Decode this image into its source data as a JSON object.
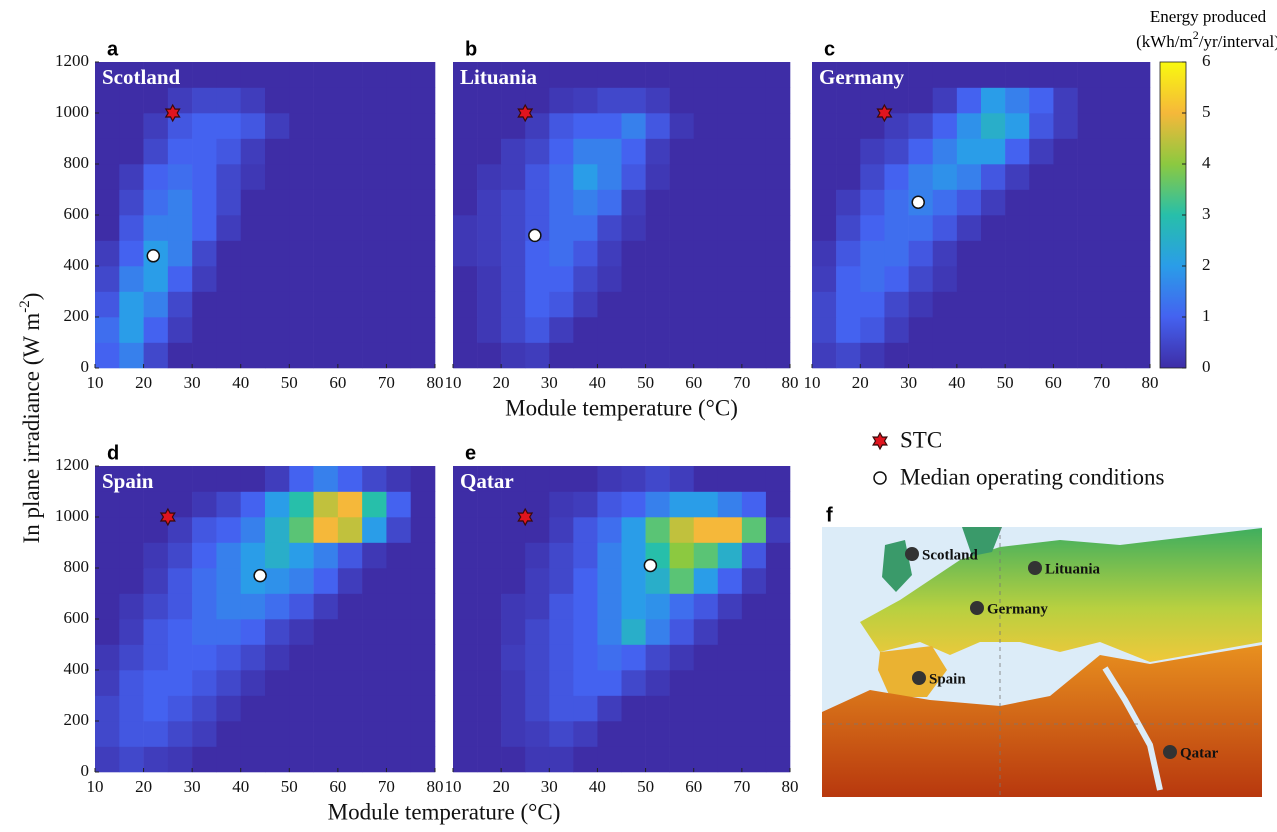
{
  "chart_data": [
    {
      "type": "heatmap",
      "panel": "a",
      "title": "Scotland",
      "ylabel": "In plane irradiance (W m",
      "ylabel_sup": "-2",
      "ylabel_end": ")",
      "xlim": [
        10,
        80
      ],
      "ylim": [
        0,
        1200
      ],
      "xticks": [
        10,
        20,
        30,
        40,
        50,
        60,
        70,
        80
      ],
      "yticks": [
        0,
        200,
        400,
        600,
        800,
        1000,
        1200
      ],
      "xbins": [
        10,
        15,
        20,
        25,
        30,
        35,
        40,
        45,
        50,
        55,
        60,
        65,
        70,
        75,
        80
      ],
      "ybins": [
        0,
        100,
        200,
        300,
        400,
        500,
        600,
        700,
        800,
        900,
        1000,
        1100,
        1200
      ],
      "z": [
        [
          1,
          1.5,
          0.5,
          0,
          0,
          0,
          0,
          0,
          0,
          0,
          0,
          0,
          0,
          0
        ],
        [
          1.2,
          2,
          1,
          0.3,
          0,
          0,
          0,
          0,
          0,
          0,
          0,
          0,
          0,
          0
        ],
        [
          0.8,
          2,
          1.5,
          0.5,
          0,
          0,
          0,
          0,
          0,
          0,
          0,
          0,
          0,
          0
        ],
        [
          0.5,
          1.5,
          2,
          1,
          0.3,
          0,
          0,
          0,
          0,
          0,
          0,
          0,
          0,
          0
        ],
        [
          0.3,
          1,
          2,
          1.5,
          0.5,
          0,
          0,
          0,
          0,
          0,
          0,
          0,
          0,
          0
        ],
        [
          0,
          0.8,
          1.5,
          1.5,
          1,
          0.3,
          0,
          0,
          0,
          0,
          0,
          0,
          0,
          0
        ],
        [
          0,
          0.5,
          1.2,
          1.5,
          1,
          0.5,
          0,
          0,
          0,
          0,
          0,
          0,
          0,
          0
        ],
        [
          0,
          0.3,
          1,
          1.2,
          1,
          0.5,
          0.2,
          0,
          0,
          0,
          0,
          0,
          0,
          0
        ],
        [
          0,
          0,
          0.5,
          1,
          1,
          0.8,
          0.3,
          0,
          0,
          0,
          0,
          0,
          0,
          0
        ],
        [
          0,
          0,
          0.3,
          0.8,
          1,
          1,
          0.8,
          0.3,
          0,
          0,
          0,
          0,
          0,
          0
        ],
        [
          0,
          0,
          0,
          0.3,
          0.5,
          0.5,
          0.3,
          0,
          0,
          0,
          0,
          0,
          0,
          0
        ],
        [
          0,
          0,
          0,
          0,
          0,
          0,
          0,
          0,
          0,
          0,
          0,
          0,
          0,
          0
        ]
      ],
      "stc": {
        "x": 26,
        "y": 1000
      },
      "median": {
        "x": 22,
        "y": 440
      }
    },
    {
      "type": "heatmap",
      "panel": "b",
      "title": "Lituania",
      "xlabel": "Module temperature (°C)",
      "xlim": [
        10,
        80
      ],
      "ylim": [
        0,
        1200
      ],
      "xticks": [
        10,
        20,
        30,
        40,
        50,
        60,
        70,
        80
      ],
      "xbins": [
        10,
        15,
        20,
        25,
        30,
        35,
        40,
        45,
        50,
        55,
        60,
        65,
        70,
        75,
        80
      ],
      "ybins": [
        0,
        100,
        200,
        300,
        400,
        500,
        600,
        700,
        800,
        900,
        1000,
        1100,
        1200
      ],
      "z": [
        [
          0,
          0,
          0.2,
          0.3,
          0,
          0,
          0,
          0,
          0,
          0,
          0,
          0,
          0,
          0
        ],
        [
          0,
          0.2,
          0.5,
          0.8,
          0.3,
          0,
          0,
          0,
          0,
          0,
          0,
          0,
          0,
          0
        ],
        [
          0,
          0.2,
          0.5,
          1,
          0.8,
          0.3,
          0,
          0,
          0,
          0,
          0,
          0,
          0,
          0
        ],
        [
          0,
          0.2,
          0.5,
          1,
          1,
          0.5,
          0.2,
          0,
          0,
          0,
          0,
          0,
          0,
          0
        ],
        [
          0.2,
          0.3,
          0.5,
          1,
          1.2,
          0.8,
          0.3,
          0,
          0,
          0,
          0,
          0,
          0,
          0
        ],
        [
          0.2,
          0.3,
          0.5,
          0.8,
          1.2,
          1.2,
          0.5,
          0.2,
          0,
          0,
          0,
          0,
          0,
          0
        ],
        [
          0,
          0.3,
          0.5,
          0.8,
          1.2,
          1.5,
          1.2,
          0.3,
          0,
          0,
          0,
          0,
          0,
          0
        ],
        [
          0,
          0.2,
          0.3,
          0.8,
          1.2,
          2,
          1.5,
          0.8,
          0.2,
          0,
          0,
          0,
          0,
          0
        ],
        [
          0,
          0,
          0.3,
          0.5,
          1,
          1.5,
          1.5,
          1,
          0.3,
          0,
          0,
          0,
          0,
          0
        ],
        [
          0,
          0,
          0,
          0.3,
          0.8,
          1,
          1,
          1.5,
          0.8,
          0.2,
          0,
          0,
          0,
          0
        ],
        [
          0,
          0,
          0,
          0,
          0.2,
          0.3,
          0.5,
          0.5,
          0.3,
          0,
          0,
          0,
          0,
          0
        ],
        [
          0,
          0,
          0,
          0,
          0,
          0,
          0,
          0,
          0,
          0,
          0,
          0,
          0,
          0
        ]
      ],
      "stc": {
        "x": 25,
        "y": 1000
      },
      "median": {
        "x": 27,
        "y": 520
      }
    },
    {
      "type": "heatmap",
      "panel": "c",
      "title": "Germany",
      "xlim": [
        10,
        80
      ],
      "ylim": [
        0,
        1200
      ],
      "xticks": [
        10,
        20,
        30,
        40,
        50,
        60,
        70,
        80
      ],
      "xbins": [
        10,
        15,
        20,
        25,
        30,
        35,
        40,
        45,
        50,
        55,
        60,
        65,
        70,
        75,
        80
      ],
      "ybins": [
        0,
        100,
        200,
        300,
        400,
        500,
        600,
        700,
        800,
        900,
        1000,
        1100,
        1200
      ],
      "z": [
        [
          0.3,
          0.5,
          0.2,
          0,
          0,
          0,
          0,
          0,
          0,
          0,
          0,
          0,
          0,
          0
        ],
        [
          0.5,
          1,
          0.8,
          0.3,
          0,
          0,
          0,
          0,
          0,
          0,
          0,
          0,
          0,
          0
        ],
        [
          0.5,
          1,
          1,
          0.5,
          0.2,
          0,
          0,
          0,
          0,
          0,
          0,
          0,
          0,
          0
        ],
        [
          0.3,
          1,
          1.2,
          1,
          0.5,
          0.2,
          0,
          0,
          0,
          0,
          0,
          0,
          0,
          0
        ],
        [
          0.2,
          0.8,
          1.2,
          1.2,
          0.8,
          0.3,
          0,
          0,
          0,
          0,
          0,
          0,
          0,
          0
        ],
        [
          0,
          0.5,
          1,
          1.2,
          1.2,
          0.8,
          0.3,
          0,
          0,
          0,
          0,
          0,
          0,
          0
        ],
        [
          0,
          0.3,
          0.8,
          1.2,
          1.5,
          1.2,
          0.8,
          0.3,
          0,
          0,
          0,
          0,
          0,
          0
        ],
        [
          0,
          0,
          0.5,
          1,
          1.5,
          1.8,
          1.5,
          0.8,
          0.3,
          0,
          0,
          0,
          0,
          0
        ],
        [
          0,
          0,
          0.3,
          0.5,
          1,
          1.5,
          2,
          2,
          1,
          0.3,
          0,
          0,
          0,
          0
        ],
        [
          0,
          0,
          0,
          0.3,
          0.5,
          1,
          1.8,
          2.5,
          2,
          0.8,
          0.3,
          0,
          0,
          0
        ],
        [
          0,
          0,
          0,
          0,
          0,
          0.3,
          1,
          2,
          1.5,
          1,
          0.3,
          0,
          0,
          0
        ],
        [
          0,
          0,
          0,
          0,
          0,
          0,
          0,
          0,
          0,
          0,
          0,
          0,
          0,
          0
        ]
      ],
      "stc": {
        "x": 25,
        "y": 1000
      },
      "median": {
        "x": 32,
        "y": 650
      },
      "colorbar": {
        "title": "Energy produced",
        "unit_pre": "(kWh/m",
        "unit_sup": "2",
        "unit_post": "/yr/interval)",
        "clim": [
          0,
          6
        ],
        "ticks": [
          0,
          1,
          2,
          3,
          4,
          5,
          6
        ],
        "colormap": [
          "#3e2da6",
          "#4462f0",
          "#2a9de8",
          "#27bfaa",
          "#8cc940",
          "#f5b83a",
          "#f9f90f"
        ]
      }
    },
    {
      "type": "heatmap",
      "panel": "d",
      "title": "Spain",
      "xlabel": "Module temperature (°C)",
      "xlim": [
        10,
        80
      ],
      "ylim": [
        0,
        1200
      ],
      "xticks": [
        10,
        20,
        30,
        40,
        50,
        60,
        70,
        80
      ],
      "yticks": [
        0,
        200,
        400,
        600,
        800,
        1000,
        1200
      ],
      "xbins": [
        10,
        15,
        20,
        25,
        30,
        35,
        40,
        45,
        50,
        55,
        60,
        65,
        70,
        75,
        80
      ],
      "ybins": [
        0,
        100,
        200,
        300,
        400,
        500,
        600,
        700,
        800,
        900,
        1000,
        1100,
        1200
      ],
      "z": [
        [
          0.3,
          0.5,
          0.3,
          0.2,
          0,
          0,
          0,
          0,
          0,
          0,
          0,
          0,
          0,
          0
        ],
        [
          0.5,
          0.8,
          0.8,
          0.5,
          0.3,
          0,
          0,
          0,
          0,
          0,
          0,
          0,
          0,
          0
        ],
        [
          0.5,
          0.8,
          1,
          0.8,
          0.5,
          0.2,
          0,
          0,
          0,
          0,
          0,
          0,
          0,
          0
        ],
        [
          0.3,
          0.8,
          1,
          1,
          0.8,
          0.5,
          0.2,
          0,
          0,
          0,
          0,
          0,
          0,
          0
        ],
        [
          0.2,
          0.5,
          0.8,
          1,
          1,
          0.8,
          0.5,
          0.2,
          0,
          0,
          0,
          0,
          0,
          0
        ],
        [
          0,
          0.3,
          0.8,
          1,
          1.2,
          1.2,
          1,
          0.5,
          0.2,
          0,
          0,
          0,
          0,
          0
        ],
        [
          0,
          0.2,
          0.5,
          0.8,
          1.2,
          1.5,
          1.5,
          1.2,
          0.8,
          0.3,
          0,
          0,
          0,
          0
        ],
        [
          0,
          0,
          0.3,
          0.8,
          1.2,
          1.5,
          2,
          1.8,
          1.5,
          1,
          0.3,
          0,
          0,
          0
        ],
        [
          0,
          0,
          0.2,
          0.5,
          1,
          1.5,
          2,
          2.5,
          2,
          1.5,
          0.8,
          0.2,
          0,
          0
        ],
        [
          0,
          0,
          0,
          0.3,
          0.8,
          1,
          1.5,
          2.5,
          3.5,
          5,
          4.5,
          2,
          0.5,
          0
        ],
        [
          0,
          0,
          0,
          0,
          0.2,
          0.5,
          1,
          2,
          3,
          4.5,
          5,
          3,
          1,
          0
        ],
        [
          0,
          0,
          0,
          0,
          0,
          0,
          0,
          0.3,
          1,
          1.5,
          1,
          0.5,
          0.2,
          0
        ]
      ],
      "stc": {
        "x": 25,
        "y": 1000
      },
      "median": {
        "x": 44,
        "y": 770
      }
    },
    {
      "type": "heatmap",
      "panel": "e",
      "title": "Qatar",
      "xlim": [
        10,
        80
      ],
      "ylim": [
        0,
        1200
      ],
      "xticks": [
        10,
        20,
        30,
        40,
        50,
        60,
        70,
        80
      ],
      "xbins": [
        10,
        15,
        20,
        25,
        30,
        35,
        40,
        45,
        50,
        55,
        60,
        65,
        70,
        75,
        80
      ],
      "ybins": [
        0,
        100,
        200,
        300,
        400,
        500,
        600,
        700,
        800,
        900,
        1000,
        1100,
        1200
      ],
      "z": [
        [
          0,
          0,
          0,
          0.2,
          0.2,
          0,
          0,
          0,
          0,
          0,
          0,
          0,
          0,
          0
        ],
        [
          0,
          0,
          0.2,
          0.3,
          0.5,
          0.3,
          0,
          0,
          0,
          0,
          0,
          0,
          0,
          0
        ],
        [
          0,
          0,
          0.2,
          0.5,
          0.8,
          0.8,
          0.3,
          0,
          0,
          0,
          0,
          0,
          0,
          0
        ],
        [
          0,
          0,
          0.2,
          0.5,
          0.8,
          1,
          1,
          0.5,
          0.2,
          0,
          0,
          0,
          0,
          0
        ],
        [
          0,
          0,
          0.3,
          0.5,
          0.8,
          1,
          1.2,
          1,
          0.5,
          0.2,
          0,
          0,
          0,
          0
        ],
        [
          0,
          0,
          0.2,
          0.5,
          0.8,
          1,
          1.5,
          2.5,
          1.5,
          0.8,
          0.3,
          0,
          0,
          0
        ],
        [
          0,
          0,
          0.2,
          0.3,
          0.8,
          1,
          1.5,
          2,
          1.8,
          1.2,
          0.8,
          0.3,
          0,
          0
        ],
        [
          0,
          0,
          0,
          0.3,
          0.5,
          1,
          1.5,
          2,
          2.5,
          3.5,
          2,
          1,
          0.3,
          0
        ],
        [
          0,
          0,
          0,
          0.2,
          0.5,
          0.8,
          1.5,
          2,
          3,
          4,
          3.5,
          2.5,
          0.8,
          0
        ],
        [
          0,
          0,
          0,
          0,
          0.3,
          0.8,
          1.2,
          2,
          3.5,
          4.5,
          5,
          5,
          3.5,
          0.3
        ],
        [
          0,
          0,
          0,
          0,
          0.2,
          0.3,
          0.8,
          1,
          1.5,
          2,
          2,
          1.5,
          1,
          0
        ],
        [
          0,
          0,
          0,
          0,
          0,
          0,
          0.2,
          0.3,
          0.5,
          0.3,
          0,
          0,
          0,
          0
        ]
      ],
      "stc": {
        "x": 25,
        "y": 1000
      },
      "median": {
        "x": 51,
        "y": 810
      },
      "legend": {
        "stc": "STC",
        "median": "Median operating conditions"
      }
    }
  ],
  "map": {
    "panel": "f",
    "places": [
      "Scotland",
      "Lituania",
      "Germany",
      "Spain",
      "Qatar"
    ]
  }
}
